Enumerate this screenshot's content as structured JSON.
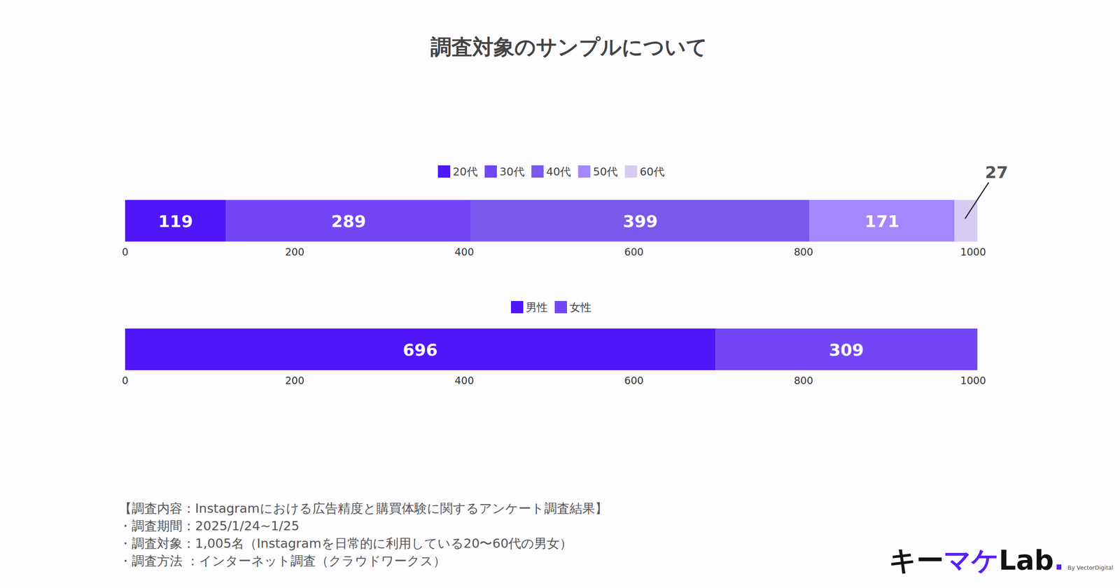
{
  "title": "調査対象のサンプルについて",
  "chart_data": [
    {
      "type": "bar",
      "orientation": "horizontal",
      "stacked": true,
      "data_labels": true,
      "tick_labels": "x",
      "legend": "top",
      "categories": [
        null
      ],
      "series": [
        {
          "name": "20代",
          "color": "#4f16f7",
          "values": [
            119
          ]
        },
        {
          "name": "30代",
          "color": "#7346f5",
          "values": [
            289
          ]
        },
        {
          "name": "40代",
          "color": "#7b58ec",
          "values": [
            399
          ]
        },
        {
          "name": "50代",
          "color": "#a487fb",
          "values": [
            171
          ]
        },
        {
          "name": "60代",
          "color": "#d6cbf3",
          "values": [
            27
          ]
        }
      ],
      "xlim": [
        0,
        1005
      ],
      "xticks": [
        0,
        200,
        400,
        600,
        800,
        1000
      ]
    },
    {
      "type": "bar",
      "orientation": "horizontal",
      "stacked": true,
      "data_labels": true,
      "tick_labels": "x",
      "legend": "top",
      "categories": [
        null
      ],
      "series": [
        {
          "name": "男性",
          "color": "#4f16f7",
          "values": [
            696
          ]
        },
        {
          "name": "女性",
          "color": "#7346f5",
          "values": [
            309
          ]
        }
      ],
      "xlim": [
        0,
        1005
      ],
      "xticks": [
        0,
        200,
        400,
        600,
        800,
        1000
      ]
    }
  ],
  "footer": {
    "heading": "【調査内容：Instagramにおける広告精度と購買体験に関するアンケート調査結果】",
    "lines": [
      "・調査期間：2025/1/24~1/25",
      "・調査対象：1,005名（Instagramを日常的に利用している20〜60代の男女）",
      "・調査方法 ：インターネット調査（クラウドワークス）"
    ]
  },
  "logo": {
    "parts": [
      "キー",
      "マケ",
      "Lab",
      "."
    ],
    "by": "By VectorDigital"
  }
}
